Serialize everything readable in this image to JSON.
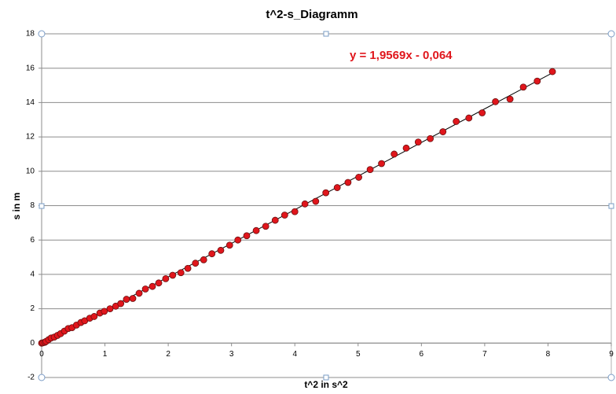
{
  "chart_data": {
    "type": "scatter",
    "title": "t^2-s_Diagramm",
    "x_label": "t^2  in s^2",
    "y_label": "s in m",
    "x": [
      0,
      0.02,
      0.05,
      0.07,
      0.11,
      0.15,
      0.2,
      0.25,
      0.3,
      0.36,
      0.42,
      0.48,
      0.55,
      0.62,
      0.68,
      0.76,
      0.83,
      0.92,
      0.99,
      1.08,
      1.17,
      1.25,
      1.34,
      1.44,
      1.54,
      1.64,
      1.75,
      1.85,
      1.96,
      2.07,
      2.2,
      2.31,
      2.43,
      2.56,
      2.69,
      2.83,
      2.97,
      3.1,
      3.24,
      3.39,
      3.54,
      3.69,
      3.84,
      4.0,
      4.16,
      4.33,
      4.49,
      4.67,
      4.84,
      5.01,
      5.19,
      5.37,
      5.57,
      5.76,
      5.95,
      6.14,
      6.34,
      6.55,
      6.75,
      6.96,
      7.17,
      7.4,
      7.61,
      7.83,
      8.07
    ],
    "series": [
      {
        "name": "s",
        "color": "#e0161c",
        "values": [
          0,
          0.02,
          0.05,
          0.1,
          0.2,
          0.3,
          0.35,
          0.45,
          0.55,
          0.7,
          0.85,
          0.9,
          1.05,
          1.2,
          1.3,
          1.45,
          1.55,
          1.75,
          1.85,
          2.0,
          2.15,
          2.3,
          2.55,
          2.6,
          2.9,
          3.15,
          3.3,
          3.5,
          3.75,
          3.95,
          4.1,
          4.35,
          4.65,
          4.85,
          5.2,
          5.4,
          5.7,
          6.0,
          6.25,
          6.55,
          6.8,
          7.15,
          7.45,
          7.65,
          8.1,
          8.25,
          8.75,
          9.05,
          9.35,
          9.65,
          10.1,
          10.45,
          11.0,
          11.35,
          11.7,
          11.9,
          12.3,
          12.9,
          13.1,
          13.4,
          14.05,
          14.2,
          14.9,
          15.25,
          15.8
        ]
      }
    ],
    "trendline": {
      "slope": 1.9569,
      "intercept": -0.064,
      "label": "y = 1,9569x  - 0,064",
      "color": "#e0161c"
    },
    "xlim": [
      0,
      9
    ],
    "xticks": [
      0,
      1,
      2,
      3,
      4,
      5,
      6,
      7,
      8,
      9
    ],
    "ylim": [
      -2,
      18
    ],
    "yticks": [
      -2,
      0,
      2,
      4,
      6,
      8,
      10,
      12,
      14,
      16,
      18
    ],
    "grid": true
  }
}
